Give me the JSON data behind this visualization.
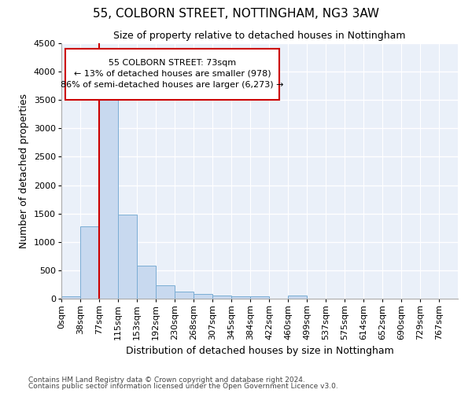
{
  "title1": "55, COLBORN STREET, NOTTINGHAM, NG3 3AW",
  "title2": "Size of property relative to detached houses in Nottingham",
  "xlabel": "Distribution of detached houses by size in Nottingham",
  "ylabel": "Number of detached properties",
  "bar_color": "#c8d9ef",
  "bar_edge_color": "#7aadd4",
  "background_color": "#eaf0f9",
  "categories": [
    "0sqm",
    "38sqm",
    "77sqm",
    "115sqm",
    "153sqm",
    "192sqm",
    "230sqm",
    "268sqm",
    "307sqm",
    "345sqm",
    "384sqm",
    "422sqm",
    "460sqm",
    "499sqm",
    "537sqm",
    "575sqm",
    "614sqm",
    "652sqm",
    "690sqm",
    "729sqm",
    "767sqm"
  ],
  "values": [
    40,
    1280,
    3500,
    1480,
    575,
    240,
    120,
    80,
    55,
    40,
    35,
    0,
    55,
    0,
    0,
    0,
    0,
    0,
    0,
    0,
    0
  ],
  "ylim": [
    0,
    4500
  ],
  "yticks": [
    0,
    500,
    1000,
    1500,
    2000,
    2500,
    3000,
    3500,
    4000,
    4500
  ],
  "vline_index": 2,
  "annotation_line1": "55 COLBORN STREET: 73sqm",
  "annotation_line2": "← 13% of detached houses are smaller (978)",
  "annotation_line3": "86% of semi-detached houses are larger (6,273) →",
  "annotation_box_facecolor": "#ffffff",
  "annotation_box_edgecolor": "#cc0000",
  "vline_color": "#cc0000",
  "footer1": "Contains HM Land Registry data © Crown copyright and database right 2024.",
  "footer2": "Contains public sector information licensed under the Open Government Licence v3.0.",
  "fig_facecolor": "#ffffff",
  "tick_label_fontsize": 8,
  "ylabel_fontsize": 9,
  "xlabel_fontsize": 9,
  "title1_fontsize": 11,
  "title2_fontsize": 9
}
